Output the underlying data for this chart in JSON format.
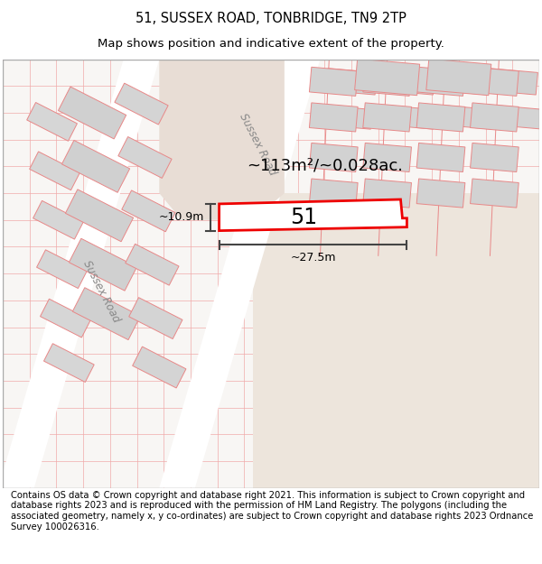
{
  "title": "51, SUSSEX ROAD, TONBRIDGE, TN9 2TP",
  "subtitle": "Map shows position and indicative extent of the property.",
  "footer": "Contains OS data © Crown copyright and database right 2021. This information is subject to Crown copyright and database rights 2023 and is reproduced with the permission of HM Land Registry. The polygons (including the associated geometry, namely x, y co-ordinates) are subject to Crown copyright and database rights 2023 Ordnance Survey 100026316.",
  "area_label": "~113m²/~0.028ac.",
  "width_label": "~27.5m",
  "height_label": "~10.9m",
  "number_label": "51",
  "road_label1": "Sussex Road",
  "road_label2": "Sussex Road",
  "title_fontsize": 10.5,
  "subtitle_fontsize": 9.5,
  "footer_fontsize": 7.2,
  "map_bg": "#f8f6f4",
  "road_fill": "#f0ece8",
  "road_fill2": "#e8ddd5",
  "building_fill": "#d8d8d8",
  "building_edge": "#e88888",
  "property_fill": "#ffffff",
  "property_edge": "#ee0000",
  "grid_color": "#f0aaaa",
  "dim_color": "#444444"
}
